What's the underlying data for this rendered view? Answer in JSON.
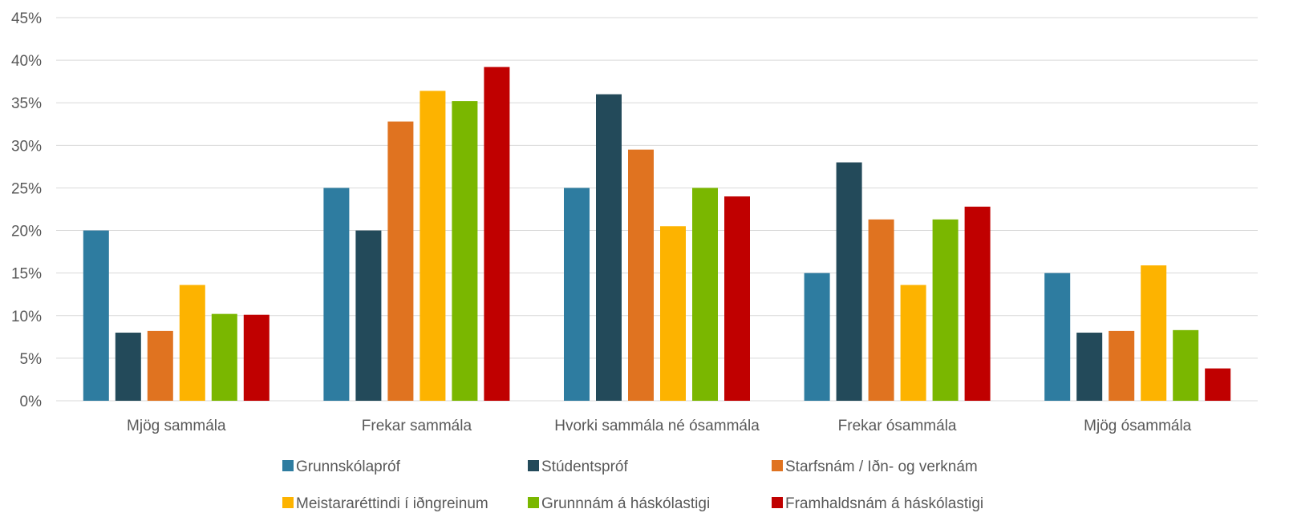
{
  "chart_data": {
    "type": "bar",
    "categories": [
      "Mjög sammála",
      "Frekar sammála",
      "Hvorki sammála né ósammála",
      "Frekar ósammála",
      "Mjög ósammála"
    ],
    "series": [
      {
        "name": "Grunnskólapróf",
        "color": "#2e7ca0",
        "values": [
          20,
          25,
          25,
          15,
          15
        ]
      },
      {
        "name": "Stúdentspróf",
        "color": "#234a5a",
        "values": [
          8,
          20,
          36,
          28,
          8
        ]
      },
      {
        "name": "Starfsnám / Iðn- og verknám",
        "color": "#e07320",
        "values": [
          8.2,
          32.8,
          29.5,
          21.3,
          8.2
        ]
      },
      {
        "name": "Meistararéttindi í iðngreinum",
        "color": "#fdb300",
        "values": [
          13.6,
          36.4,
          20.5,
          13.6,
          15.9
        ]
      },
      {
        "name": "Grunnnám á háskólastigi",
        "color": "#7ab700",
        "values": [
          10.2,
          35.2,
          25,
          21.3,
          8.3
        ]
      },
      {
        "name": "Framhaldsnám á háskólastigi",
        "color": "#c00000",
        "values": [
          10.1,
          39.2,
          24,
          22.8,
          3.8
        ]
      }
    ],
    "y_ticks": [
      "0%",
      "5%",
      "10%",
      "15%",
      "20%",
      "25%",
      "30%",
      "35%",
      "40%",
      "45%"
    ],
    "ylim": [
      0,
      45
    ],
    "grid": true,
    "legend_position": "bottom"
  }
}
